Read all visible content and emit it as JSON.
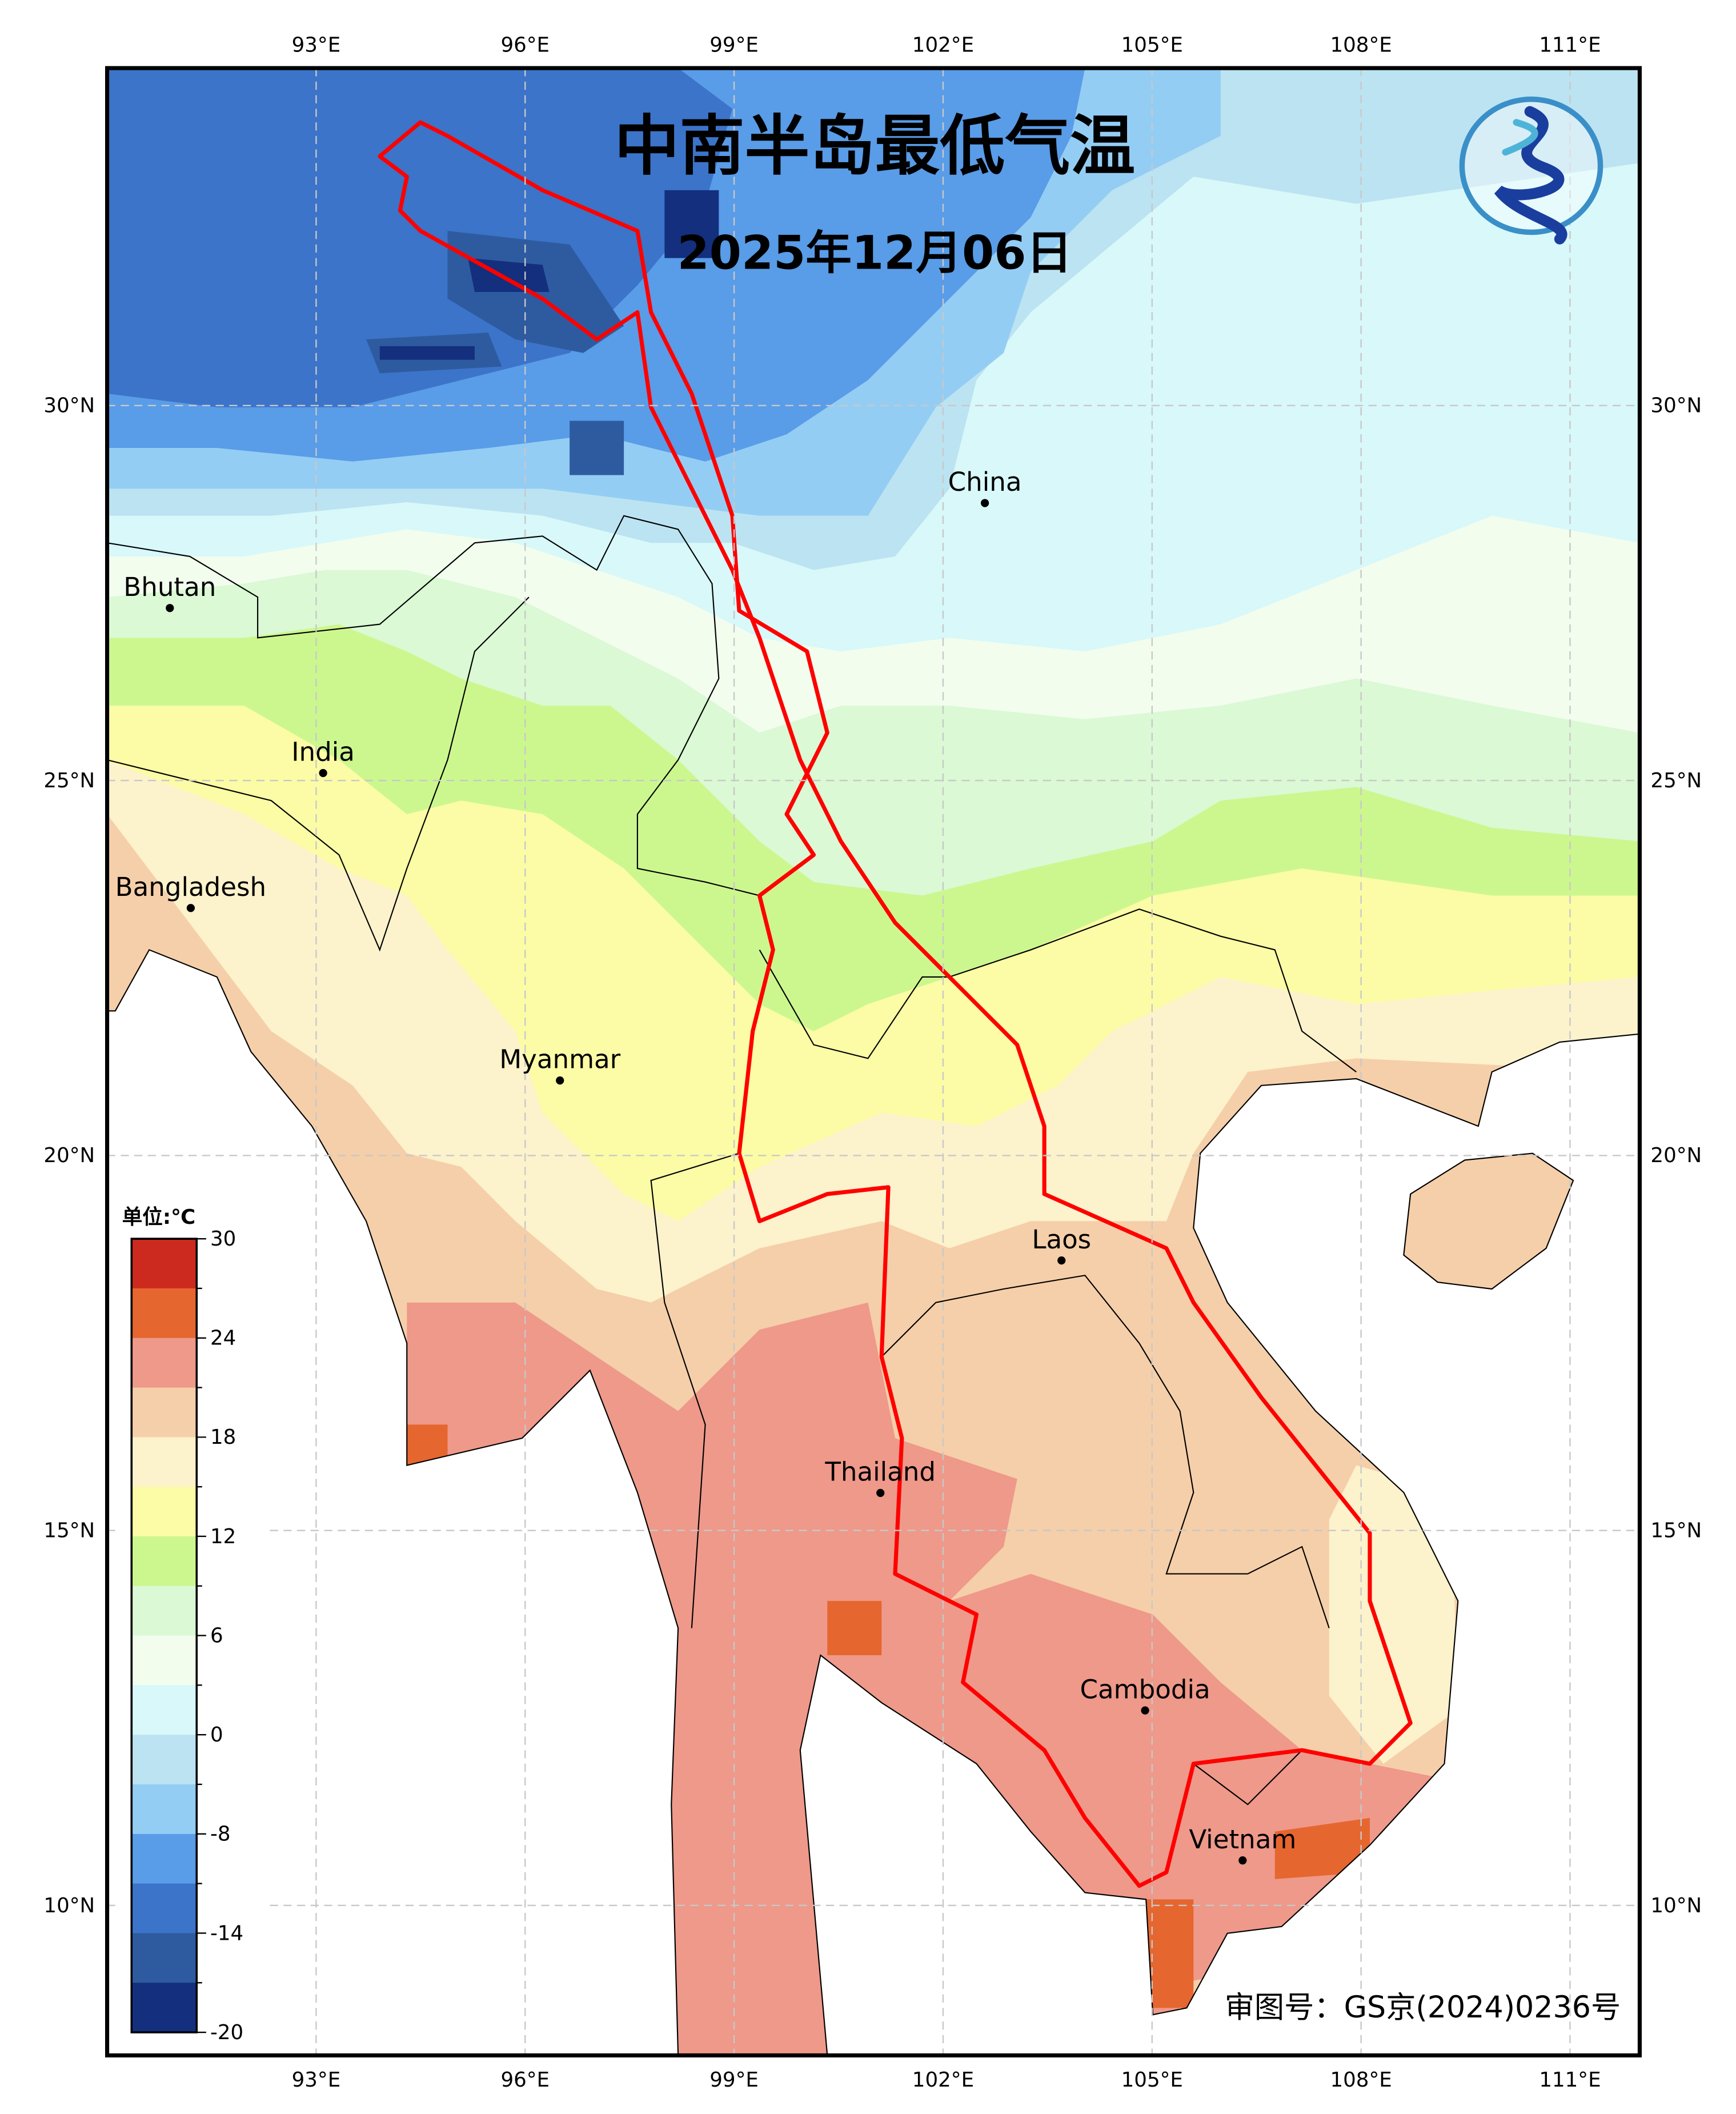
{
  "title": "中南半岛最低气温",
  "date": "2025年12月06日",
  "approval": "审图号：GS京(2024)0236号",
  "logo": "cma-logo",
  "lon_ticks": [
    "93°E",
    "96°E",
    "99°E",
    "102°E",
    "105°E",
    "108°E",
    "111°E"
  ],
  "lat_ticks": [
    "30°N",
    "25°N",
    "20°N",
    "15°N",
    "10°N"
  ],
  "extent": {
    "lon": [
      90,
      112
    ],
    "lat": [
      8,
      34.5
    ]
  },
  "colorbar": {
    "unit_label": "单位:℃",
    "bounds": [
      30,
      27,
      24,
      21,
      18,
      15,
      12,
      9,
      6,
      3,
      0,
      -4,
      -8,
      -11,
      -14,
      -17,
      -20
    ],
    "labels": [
      "30",
      "24",
      "18",
      "12",
      "6",
      "0",
      "-8",
      "-14",
      "-20"
    ],
    "colors": [
      "#CD2A1F",
      "#E6662F",
      "#EE998A",
      "#F5CFA9",
      "#FCF2CC",
      "#FCFCA6",
      "#CCF78F",
      "#DAF9D4",
      "#F2FDEE",
      "#D8F8FA",
      "#BCE3F2",
      "#94CDF4",
      "#599CE8",
      "#3B74C9",
      "#2E5BA0",
      "#132F7E"
    ]
  },
  "countries": [
    {
      "name": "China",
      "lon": 102.6,
      "lat": 28.7
    },
    {
      "name": "Bhutan",
      "lon": 90.9,
      "lat": 27.3
    },
    {
      "name": "India",
      "lon": 93.1,
      "lat": 25.1
    },
    {
      "name": "Bangladesh",
      "lon": 91.2,
      "lat": 23.3
    },
    {
      "name": "Myanmar",
      "lon": 96.5,
      "lat": 21.0
    },
    {
      "name": "Laos",
      "lon": 103.7,
      "lat": 18.6
    },
    {
      "name": "Thailand",
      "lon": 101.1,
      "lat": 15.5
    },
    {
      "name": "Cambodia",
      "lon": 104.9,
      "lat": 12.6
    },
    {
      "name": "Vietnam",
      "lon": 106.3,
      "lat": 10.6
    }
  ],
  "boundary_color": "#FF0000"
}
